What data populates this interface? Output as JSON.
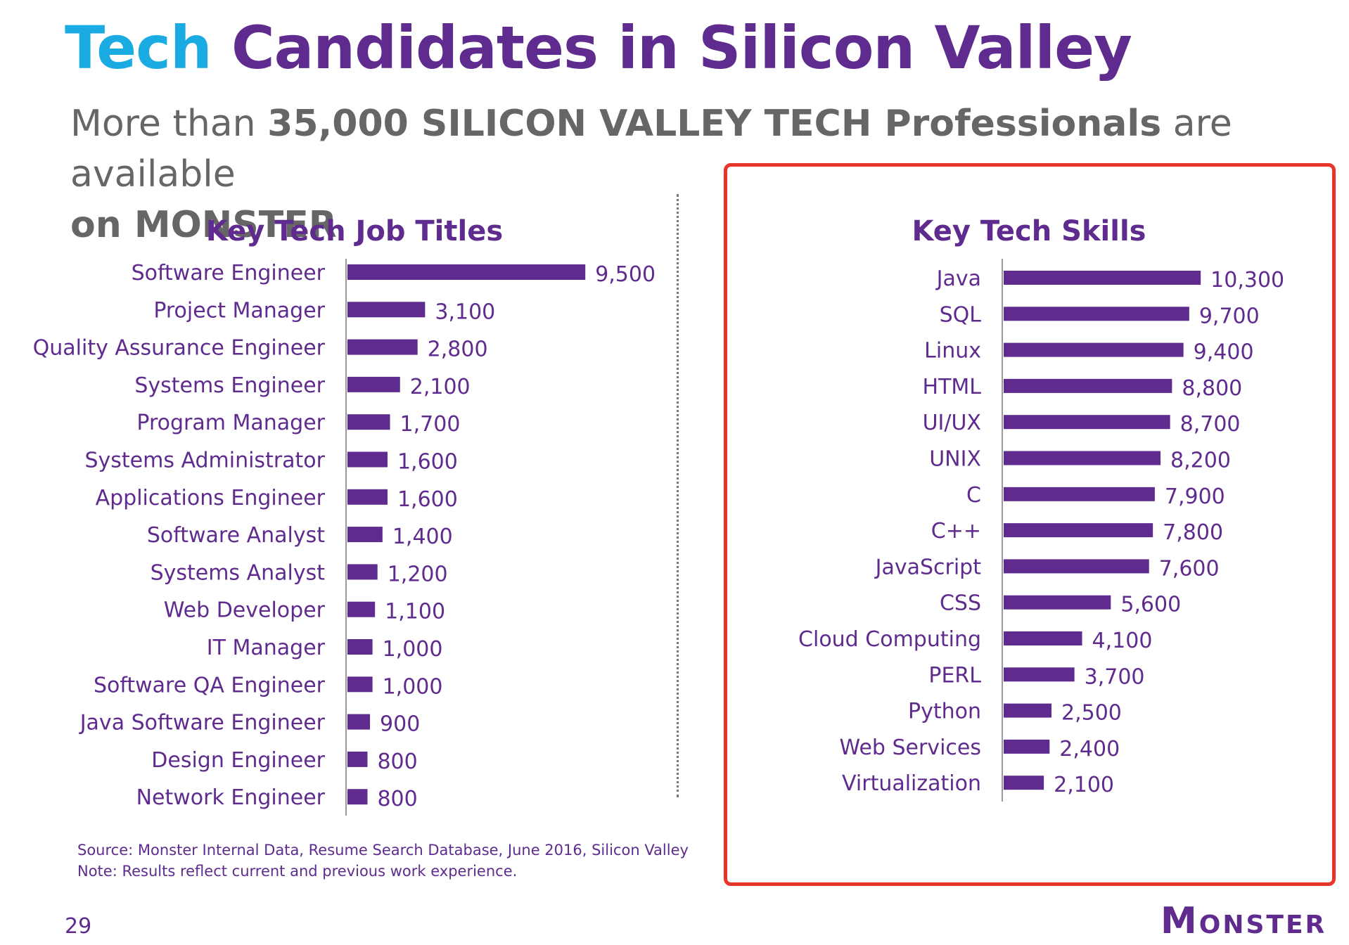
{
  "title": {
    "accent": "Tech",
    "rest": "Candidates in Silicon Valley"
  },
  "subtitle": {
    "prefix": "More than ",
    "bold": "35,000 SILICON VALLEY TECH Professionals",
    "middle": " are available ",
    "bold_end": "on MONSTER"
  },
  "footnote": {
    "source": "Source: Monster Internal Data, Resume Search Database, June 2016, Silicon Valley",
    "note": "Note: Results reflect current and previous work experience."
  },
  "page_number": "29",
  "logo": "Monster",
  "colors": {
    "bar": "#5F2B8E",
    "accent": "#1AABE3",
    "highlight": "#E8342B",
    "subtitle": "#666666"
  },
  "chart_data": [
    {
      "type": "bar",
      "orientation": "horizontal",
      "title": "Key Tech Job Titles",
      "categories": [
        "Software Engineer",
        "Project Manager",
        "Quality Assurance Engineer",
        "Systems Engineer",
        "Program Manager",
        "Systems Administrator",
        "Applications Engineer",
        "Software Analyst",
        "Systems Analyst",
        "Web Developer",
        "IT Manager",
        "Software QA Engineer",
        "Java Software Engineer",
        "Design Engineer",
        "Network Engineer"
      ],
      "values": [
        9500,
        3100,
        2800,
        2100,
        1700,
        1600,
        1600,
        1400,
        1200,
        1100,
        1000,
        1000,
        900,
        800,
        800
      ],
      "value_labels": [
        "9,500",
        "3,100",
        "2,800",
        "2,100",
        "1,700",
        "1,600",
        "1,600",
        "1,400",
        "1,200",
        "1,100",
        "1,000",
        "1,000",
        "900",
        "800",
        "800"
      ],
      "xlabel": "",
      "ylabel": "",
      "grid": false
    },
    {
      "type": "bar",
      "orientation": "horizontal",
      "title": "Key Tech Skills",
      "categories": [
        "Java",
        "SQL",
        "Linux",
        "HTML",
        "UI/UX",
        "UNIX",
        "C",
        "C++",
        "JavaScript",
        "CSS",
        "Cloud Computing",
        "PERL",
        "Python",
        "Web Services",
        "Virtualization"
      ],
      "values": [
        10300,
        9700,
        9400,
        8800,
        8700,
        8200,
        7900,
        7800,
        7600,
        5600,
        4100,
        3700,
        2500,
        2400,
        2100
      ],
      "value_labels": [
        "10,300",
        "9,700",
        "9,400",
        "8,800",
        "8,700",
        "8,200",
        "7,900",
        "7,800",
        "7,600",
        "5,600",
        "4,100",
        "3,700",
        "2,500",
        "2,400",
        "2,100"
      ],
      "xlabel": "",
      "ylabel": "",
      "grid": false,
      "highlighted": true
    }
  ]
}
